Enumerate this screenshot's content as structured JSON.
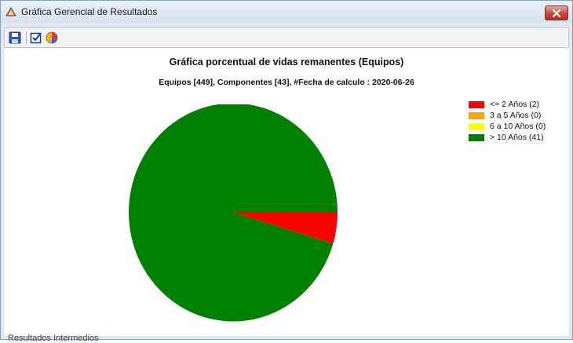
{
  "window": {
    "title": "Gráfica Gerencial de Resultados"
  },
  "toolbar": {
    "items": [
      {
        "icon": "save-icon"
      },
      {
        "icon": "checkbox-icon"
      },
      {
        "icon": "pie-chart-icon"
      }
    ]
  },
  "status": {
    "text": "Resultados Intermedios"
  },
  "colors": {
    "red": "#ff0000",
    "orange": "#ffa500",
    "yellow": "#ffff00",
    "green": "#008000"
  },
  "chart_data": {
    "type": "pie",
    "title": "Gráfica porcentual de vidas remanentes (Equipos)",
    "subtitle": "Equipos [449], Componentes [43], #Fecha de calculo : 2020-06-26",
    "legend_position": "top-right",
    "categories": [
      "<= 2 Años",
      "3 a 5 Años",
      "6 a 10 Años",
      "> 10 Años"
    ],
    "values": [
      2,
      0,
      0,
      41
    ],
    "legend_labels": [
      "<= 2 Años (2)",
      "3 a 5 Años (0)",
      "6 a 10 Años (0)",
      "> 10 Años (41)"
    ],
    "colors": [
      "#ff0000",
      "#ffa500",
      "#ffff00",
      "#008000"
    ]
  }
}
